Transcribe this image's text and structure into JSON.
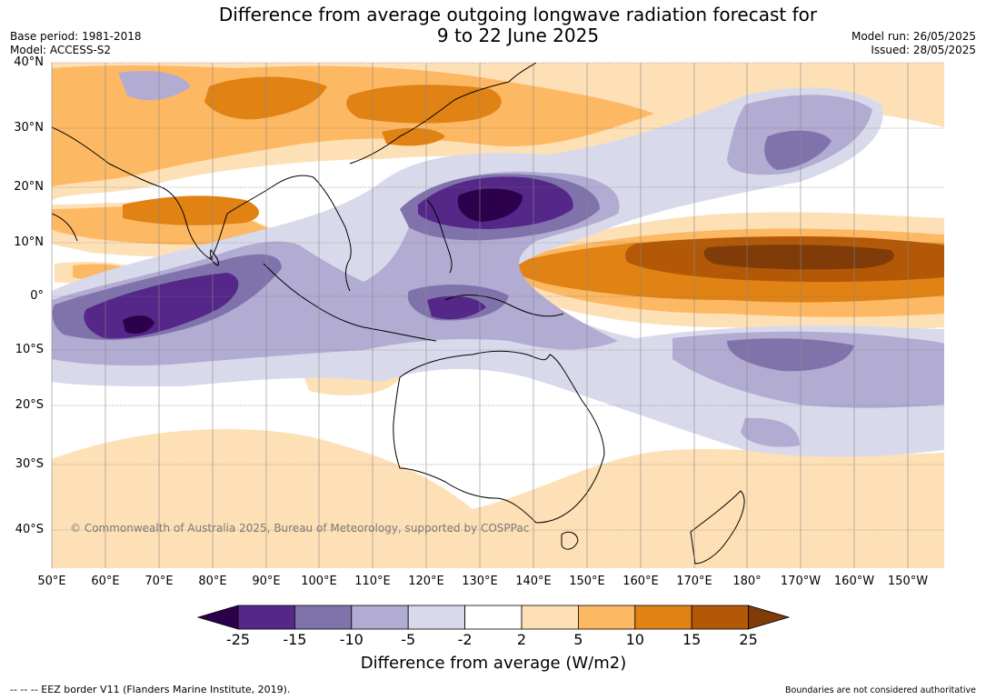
{
  "header": {
    "title_line1": "Difference from average outgoing longwave radiation forecast for",
    "title_line2": "9 to 22 June 2025",
    "base_period": "Base period: 1981-2018",
    "model": "Model: ACCESS-S2",
    "model_run": "Model run: 26/05/2025",
    "issued": "Issued: 28/05/2025"
  },
  "map": {
    "lat_labels": [
      "40°N",
      "30°N",
      "20°N",
      "10°N",
      "0°",
      "10°S",
      "20°S",
      "30°S",
      "40°S"
    ],
    "lon_labels": [
      "50°E",
      "60°E",
      "70°E",
      "80°E",
      "90°E",
      "100°E",
      "110°E",
      "120°E",
      "130°E",
      "140°E",
      "150°E",
      "160°E",
      "170°E",
      "180°",
      "170°W",
      "160°W",
      "150°W"
    ],
    "copyright": "© Commonwealth of Australia 2025, Bureau of Meteorology, supported by COSPPac",
    "land_outline_color": "#000000"
  },
  "colorbar": {
    "ticks": [
      "-25",
      "-15",
      "-10",
      "-5",
      "-2",
      "2",
      "5",
      "10",
      "15",
      "25"
    ],
    "label": "Difference from average (W/m2)",
    "colors": [
      "#2d004b",
      "#542788",
      "#8073ac",
      "#b2abd2",
      "#d8daeb",
      "#ffffff",
      "#fee0b6",
      "#fdb863",
      "#e08214",
      "#b35806",
      "#7f3b08"
    ]
  },
  "footer": {
    "eez_note": "--  --  -- EEZ border V11 (Flanders Marine Institute, 2019).",
    "boundaries_note": "Boundaries are not considered authoritative"
  }
}
